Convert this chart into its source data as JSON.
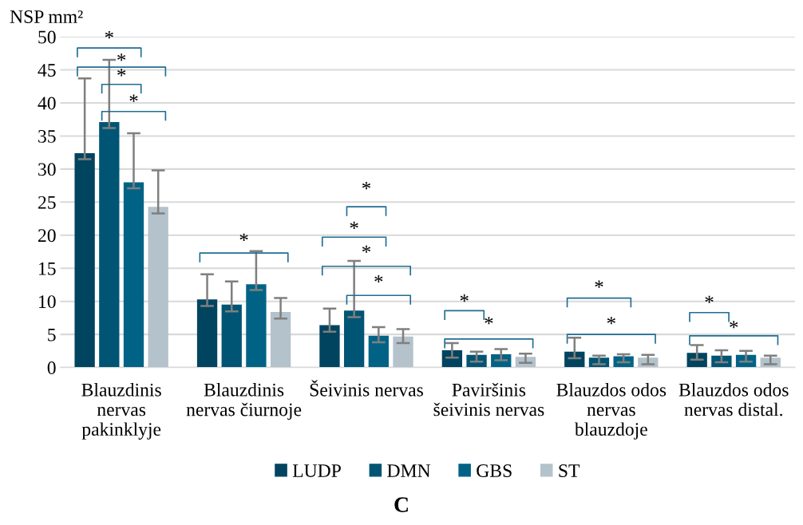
{
  "chart_data": {
    "type": "bar",
    "title": "C",
    "ylabel": "NSP mm²",
    "categories": [
      "Blauzdinis\nnervas\npakinklyje",
      "Blauzdinis\nnervas čiurnoje",
      "Šeivinis nervas",
      "Paviršinis\nšeivinis nervas",
      "Blauzdos odos\nnervas\nblauzdoje",
      "Blauzdos odos\nnervas distal."
    ],
    "series": [
      {
        "name": "LUDP",
        "color": "#00445f",
        "values": [
          32.4,
          10.3,
          6.4,
          2.6,
          2.4,
          2.2
        ],
        "errors": [
          [
            31.5,
            43.7
          ],
          [
            9.3,
            14.1
          ],
          [
            5.4,
            8.9
          ],
          [
            1.5,
            3.7
          ],
          [
            1.4,
            4.5
          ],
          [
            1.2,
            3.4
          ]
        ]
      },
      {
        "name": "DMN",
        "color": "#005574",
        "values": [
          37.1,
          9.5,
          8.6,
          1.9,
          1.5,
          1.8
        ],
        "errors": [
          [
            36.2,
            46.5
          ],
          [
            8.5,
            13.0
          ],
          [
            7.6,
            16.1
          ],
          [
            0.9,
            2.4
          ],
          [
            0.5,
            1.8
          ],
          [
            0.8,
            2.6
          ]
        ]
      },
      {
        "name": "GBS",
        "color": "#006385",
        "values": [
          28.0,
          12.6,
          4.8,
          2.0,
          1.7,
          1.9
        ],
        "errors": [
          [
            27.1,
            35.4
          ],
          [
            11.7,
            17.6
          ],
          [
            3.8,
            6.1
          ],
          [
            1.1,
            2.8
          ],
          [
            0.8,
            2.0
          ],
          [
            0.9,
            2.5
          ]
        ]
      },
      {
        "name": "ST",
        "color": "#b4c2cc",
        "values": [
          24.3,
          8.4,
          4.7,
          1.6,
          1.5,
          1.5
        ],
        "errors": [
          [
            23.3,
            29.8
          ],
          [
            7.4,
            10.5
          ],
          [
            3.7,
            5.8
          ],
          [
            0.7,
            2.1
          ],
          [
            0.5,
            1.9
          ],
          [
            0.5,
            1.8
          ]
        ]
      }
    ],
    "ylim": [
      0,
      50
    ],
    "yticks": [
      0,
      5,
      10,
      15,
      20,
      25,
      30,
      35,
      40,
      45,
      50
    ],
    "grid": "y",
    "legend": "bottom",
    "annotations": [
      "*",
      "*",
      "*",
      "*",
      "*",
      "*",
      "*",
      "*",
      "*",
      "*",
      "*",
      "*",
      "*",
      "*",
      "*"
    ]
  }
}
